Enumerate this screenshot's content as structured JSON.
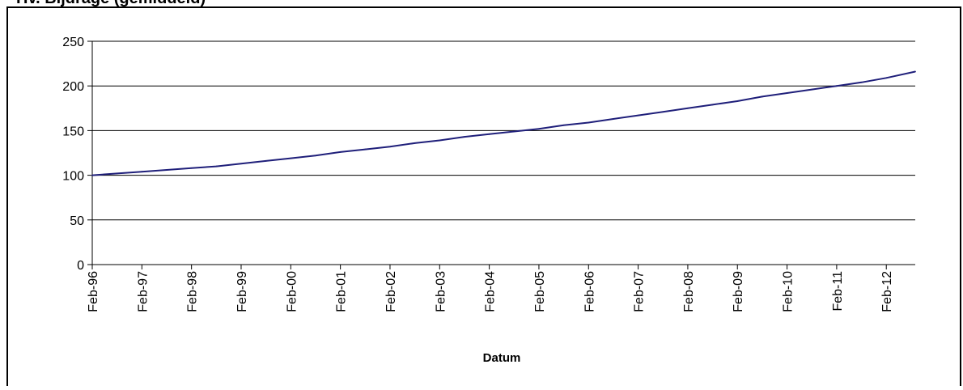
{
  "chart_data": {
    "type": "line",
    "title": "Hv. Bijdrage (gemiddeld)",
    "xlabel": "Datum",
    "ylabel": "",
    "ylim": [
      0,
      250
    ],
    "yticks": [
      0,
      50,
      100,
      150,
      200,
      250
    ],
    "xlim": [
      "1996-02",
      "2012-09"
    ],
    "xticks": [
      "Feb-96",
      "Feb-97",
      "Feb-98",
      "Feb-99",
      "Feb-00",
      "Feb-01",
      "Feb-02",
      "Feb-03",
      "Feb-04",
      "Feb-05",
      "Feb-06",
      "Feb-07",
      "Feb-08",
      "Feb-09",
      "Feb-10",
      "Feb-11",
      "Feb-12"
    ],
    "grid": true,
    "legend": "none",
    "series": [
      {
        "color": "#1f1f7a",
        "x": [
          "1996-02",
          "1996-08",
          "1997-02",
          "1997-08",
          "1998-02",
          "1998-08",
          "1999-02",
          "1999-08",
          "2000-02",
          "2000-08",
          "2001-02",
          "2001-08",
          "2002-02",
          "2002-08",
          "2003-02",
          "2003-08",
          "2004-02",
          "2004-08",
          "2005-02",
          "2005-08",
          "2006-02",
          "2006-08",
          "2007-02",
          "2007-08",
          "2008-02",
          "2008-08",
          "2009-02",
          "2009-08",
          "2010-02",
          "2010-08",
          "2011-02",
          "2011-08",
          "2012-02",
          "2012-09"
        ],
        "values": [
          100,
          102,
          104,
          106,
          108,
          110,
          113,
          116,
          119,
          122,
          126,
          129,
          132,
          136,
          139,
          143,
          146,
          149,
          152,
          156,
          159,
          163,
          167,
          171,
          175,
          179,
          183,
          188,
          192,
          196,
          200,
          204,
          209,
          216
        ]
      }
    ]
  }
}
